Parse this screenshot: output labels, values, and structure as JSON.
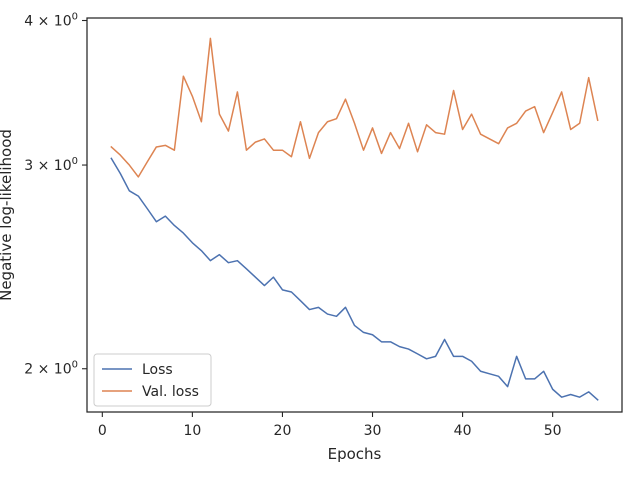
{
  "chart_data": {
    "type": "line",
    "xlabel": "Epochs",
    "ylabel": "Negative log-likelihood",
    "yscale": "log",
    "xlim": [
      -1.7,
      57.7
    ],
    "ylim": [
      1.835,
      4.02
    ],
    "x_ticks": [
      0,
      10,
      20,
      30,
      40,
      50
    ],
    "y_ticks": [
      {
        "value": 2,
        "base": "2",
        "exp": "0"
      },
      {
        "value": 3,
        "base": "3",
        "exp": "0"
      },
      {
        "value": 4,
        "base": "4",
        "exp": "0"
      }
    ],
    "grid": false,
    "legend_position": "lower-left",
    "x": [
      1,
      2,
      3,
      4,
      5,
      6,
      7,
      8,
      9,
      10,
      11,
      12,
      13,
      14,
      15,
      16,
      17,
      18,
      19,
      20,
      21,
      22,
      23,
      24,
      25,
      26,
      27,
      28,
      29,
      30,
      31,
      32,
      33,
      34,
      35,
      36,
      37,
      38,
      39,
      40,
      41,
      42,
      43,
      44,
      45,
      46,
      47,
      48,
      49,
      50,
      51,
      52,
      53,
      54,
      55
    ],
    "series": [
      {
        "name": "Loss",
        "color": "#4c72b0",
        "values": [
          3.04,
          2.95,
          2.85,
          2.82,
          2.75,
          2.68,
          2.71,
          2.66,
          2.62,
          2.57,
          2.53,
          2.48,
          2.51,
          2.47,
          2.48,
          2.44,
          2.4,
          2.36,
          2.4,
          2.34,
          2.33,
          2.29,
          2.25,
          2.26,
          2.23,
          2.22,
          2.26,
          2.18,
          2.15,
          2.14,
          2.11,
          2.11,
          2.09,
          2.08,
          2.06,
          2.04,
          2.05,
          2.12,
          2.05,
          2.05,
          2.03,
          1.99,
          1.98,
          1.97,
          1.93,
          2.05,
          1.96,
          1.96,
          1.99,
          1.92,
          1.89,
          1.9,
          1.89,
          1.91,
          1.88
        ]
      },
      {
        "name": "Val. loss",
        "color": "#dd8452",
        "values": [
          3.11,
          3.06,
          3.0,
          2.93,
          3.02,
          3.11,
          3.12,
          3.09,
          3.58,
          3.44,
          3.27,
          3.86,
          3.32,
          3.21,
          3.47,
          3.09,
          3.14,
          3.16,
          3.09,
          3.09,
          3.05,
          3.27,
          3.04,
          3.2,
          3.27,
          3.29,
          3.42,
          3.26,
          3.09,
          3.23,
          3.07,
          3.2,
          3.1,
          3.26,
          3.08,
          3.25,
          3.2,
          3.19,
          3.48,
          3.22,
          3.32,
          3.19,
          3.16,
          3.13,
          3.23,
          3.26,
          3.34,
          3.37,
          3.2,
          3.33,
          3.47,
          3.22,
          3.26,
          3.57,
          3.28
        ]
      }
    ]
  }
}
